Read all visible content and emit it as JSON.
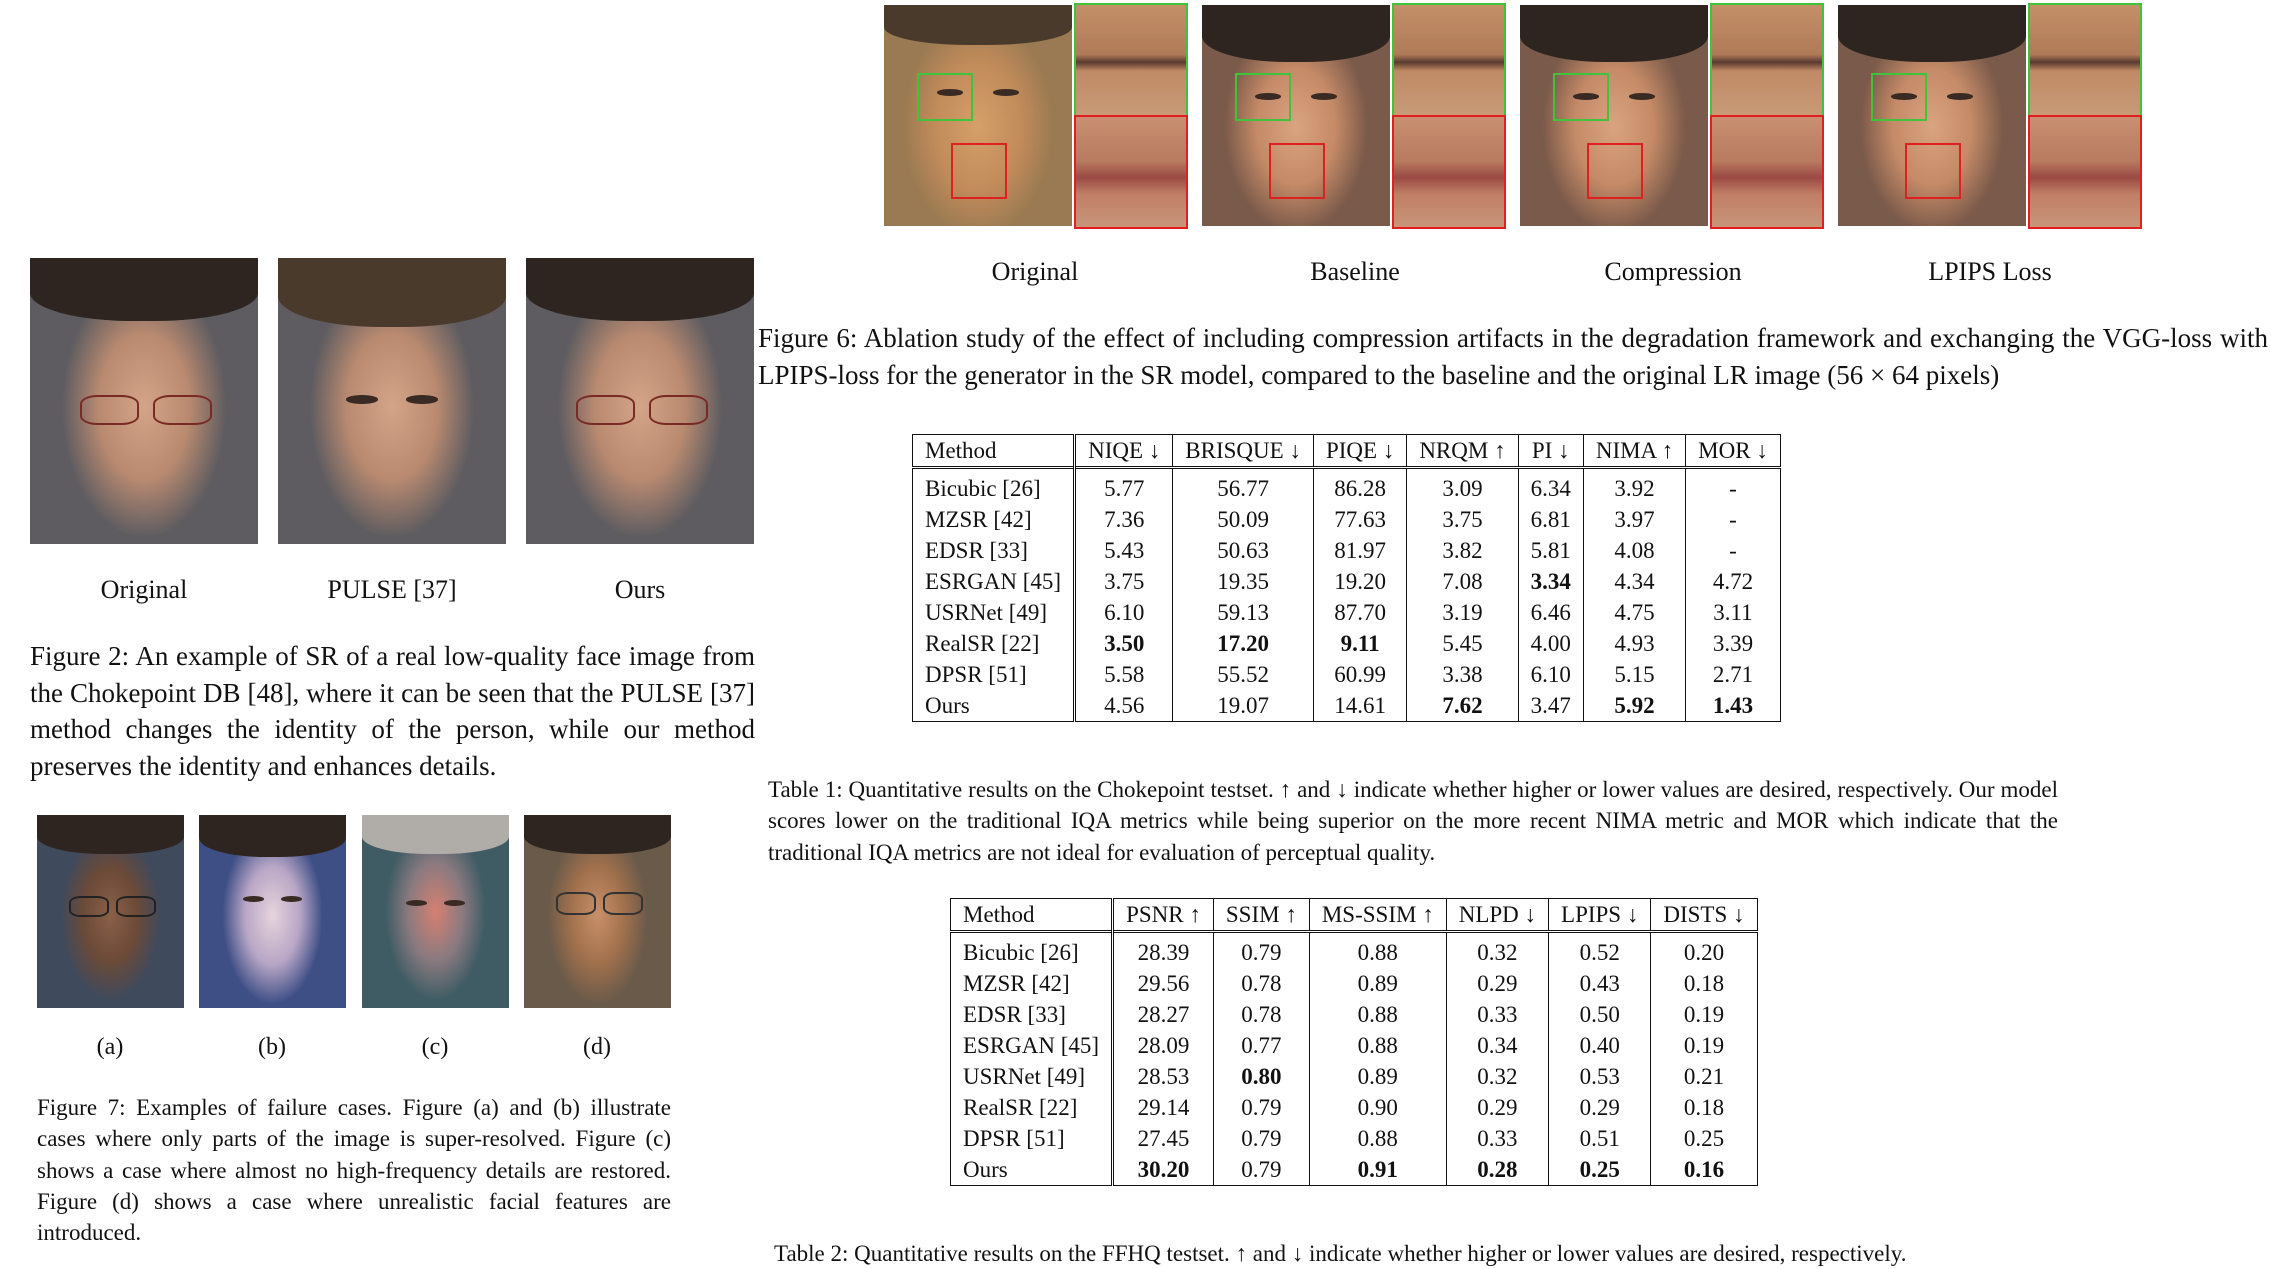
{
  "figure6": {
    "labels": [
      "Original",
      "Baseline",
      "Compression",
      "LPIPS Loss"
    ],
    "caption": "Figure 6: Ablation study of the effect of including compression artifacts in the degradation framework and exchanging the VGG-loss with LPIPS-loss for the generator in the SR model, compared to the baseline and the original LR image (56 × 64 pixels)"
  },
  "figure2": {
    "labels": [
      "Original",
      "PULSE [37]",
      "Ours"
    ],
    "caption": "Figure 2: An example of SR of a real low-quality face image from the Chokepoint DB [48], where it can be seen that the PULSE [37] method changes the identity of the person, while our method preserves the identity and enhances details."
  },
  "figure7": {
    "labels": [
      "(a)",
      "(b)",
      "(c)",
      "(d)"
    ],
    "caption": "Figure 7: Examples of failure cases. Figure (a) and (b) illustrate cases where only parts of the image is super-resolved. Figure (c) shows a case where almost no high-frequency details are restored. Figure (d) shows a case where unrealistic facial features are introduced."
  },
  "table1": {
    "headers": [
      "Method",
      "NIQE ↓",
      "BRISQUE ↓",
      "PIQE ↓",
      "NRQM ↑",
      "PI ↓",
      "NIMA ↑",
      "MOR ↓"
    ],
    "rows": [
      [
        "Bicubic [26]",
        "5.77",
        "56.77",
        "86.28",
        "3.09",
        "6.34",
        "3.92",
        "-"
      ],
      [
        "MZSR [42]",
        "7.36",
        "50.09",
        "77.63",
        "3.75",
        "6.81",
        "3.97",
        "-"
      ],
      [
        "EDSR [33]",
        "5.43",
        "50.63",
        "81.97",
        "3.82",
        "5.81",
        "4.08",
        "-"
      ],
      [
        "ESRGAN [45]",
        "3.75",
        "19.35",
        "19.20",
        "7.08",
        "3.34",
        "4.34",
        "4.72"
      ],
      [
        "USRNet [49]",
        "6.10",
        "59.13",
        "87.70",
        "3.19",
        "6.46",
        "4.75",
        "3.11"
      ],
      [
        "RealSR [22]",
        "3.50",
        "17.20",
        "9.11",
        "5.45",
        "4.00",
        "4.93",
        "3.39"
      ],
      [
        "DPSR [51]",
        "5.58",
        "55.52",
        "60.99",
        "3.38",
        "6.10",
        "5.15",
        "2.71"
      ],
      [
        "Ours",
        "4.56",
        "19.07",
        "14.61",
        "7.62",
        "3.47",
        "5.92",
        "1.43"
      ]
    ],
    "caption": "Table 1: Quantitative results on the Chokepoint testset. ↑ and ↓ indicate whether higher or lower values are desired, respectively. Our model scores lower on the traditional IQA metrics while being superior on the more recent NIMA metric and MOR which indicate that the traditional IQA metrics are not ideal for evaluation of perceptual quality."
  },
  "table2": {
    "headers": [
      "Method",
      "PSNR ↑",
      "SSIM ↑",
      "MS-SSIM ↑",
      "NLPD ↓",
      "LPIPS ↓",
      "DISTS ↓"
    ],
    "rows": [
      [
        "Bicubic [26]",
        "28.39",
        "0.79",
        "0.88",
        "0.32",
        "0.52",
        "0.20"
      ],
      [
        "MZSR [42]",
        "29.56",
        "0.78",
        "0.89",
        "0.29",
        "0.43",
        "0.18"
      ],
      [
        "EDSR [33]",
        "28.27",
        "0.78",
        "0.88",
        "0.33",
        "0.50",
        "0.19"
      ],
      [
        "ESRGAN [45]",
        "28.09",
        "0.77",
        "0.88",
        "0.34",
        "0.40",
        "0.19"
      ],
      [
        "USRNet [49]",
        "28.53",
        "0.80",
        "0.89",
        "0.32",
        "0.53",
        "0.21"
      ],
      [
        "RealSR [22]",
        "29.14",
        "0.79",
        "0.90",
        "0.29",
        "0.29",
        "0.18"
      ],
      [
        "DPSR [51]",
        "27.45",
        "0.79",
        "0.88",
        "0.33",
        "0.51",
        "0.25"
      ],
      [
        "Ours",
        "30.20",
        "0.79",
        "0.91",
        "0.28",
        "0.25",
        "0.16"
      ]
    ],
    "caption": "Table 2: Quantitative results on the FFHQ testset. ↑ and ↓ indicate whether higher or lower values are desired, respectively."
  },
  "bold_cells": {
    "table1": [
      "5-1",
      "5-2",
      "5-3",
      "7-4",
      "3-5",
      "7-6",
      "7-7"
    ],
    "table2": [
      "7-1",
      "4-2",
      "7-3",
      "7-4",
      "7-5",
      "7-6"
    ]
  }
}
